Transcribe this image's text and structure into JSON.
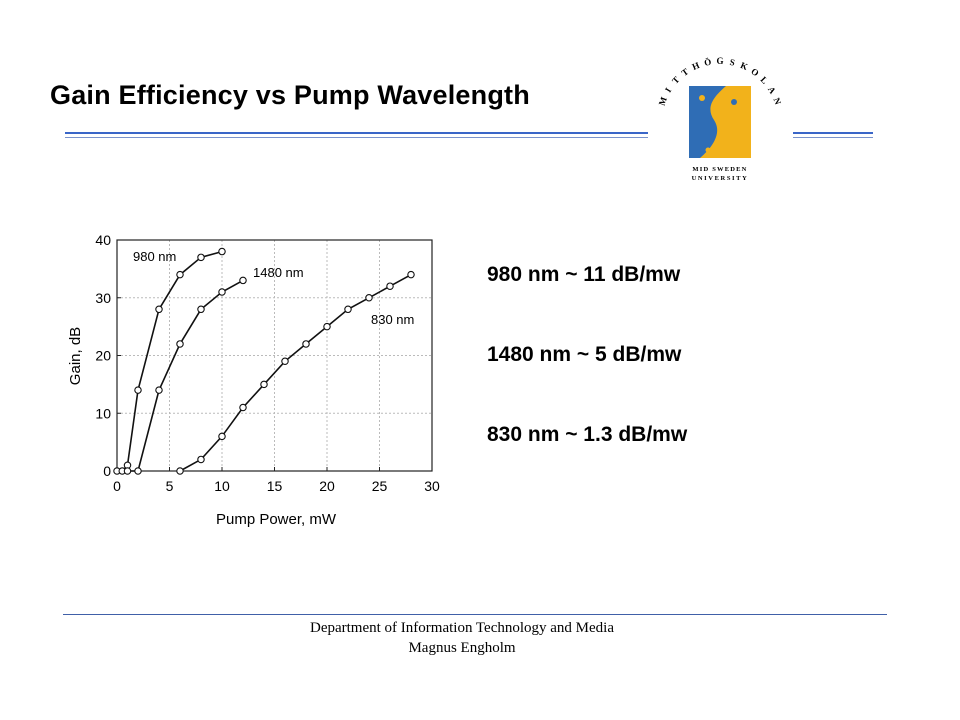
{
  "slide": {
    "title": "Gain Efficiency vs Pump Wavelength",
    "stats": [
      "980 nm ~ 11 dB/mw",
      "1480 nm ~ 5 dB/mw",
      "830 nm ~ 1.3 dB/mw"
    ],
    "footer": {
      "department": "Department of Information Technology and Media",
      "author": "Magnus Engholm"
    },
    "accent_color": "#3a66c8"
  },
  "logo": {
    "arc_text": "MITTHÖGSKOLAN",
    "line1": "MID SWEDEN",
    "line2": "UNIVERSITY",
    "colors": {
      "blue": "#2f6db5",
      "yellow": "#f2b21b"
    }
  },
  "chart_data": {
    "type": "line",
    "xlabel": "Pump Power, mW",
    "ylabel": "Gain, dB",
    "xlim": [
      0,
      30
    ],
    "ylim": [
      0,
      40
    ],
    "xticks": [
      0,
      5,
      10,
      15,
      20,
      25,
      30
    ],
    "yticks": [
      0,
      10,
      20,
      30,
      40
    ],
    "grid": true,
    "series": [
      {
        "name": "980 nm",
        "x": [
          0,
          0.5,
          1,
          2,
          4,
          6,
          8,
          10
        ],
        "y": [
          0,
          0,
          1,
          14,
          28,
          34,
          37,
          38
        ]
      },
      {
        "name": "1480 nm",
        "x": [
          1,
          2,
          4,
          6,
          8,
          10,
          12
        ],
        "y": [
          0,
          0,
          14,
          22,
          28,
          31,
          33
        ]
      },
      {
        "name": "830 nm",
        "x": [
          6,
          8,
          10,
          12,
          14,
          16,
          18,
          20,
          22,
          24,
          26,
          28
        ],
        "y": [
          0,
          2,
          6,
          11,
          15,
          19,
          22,
          25,
          28,
          30,
          32,
          34
        ]
      }
    ]
  }
}
